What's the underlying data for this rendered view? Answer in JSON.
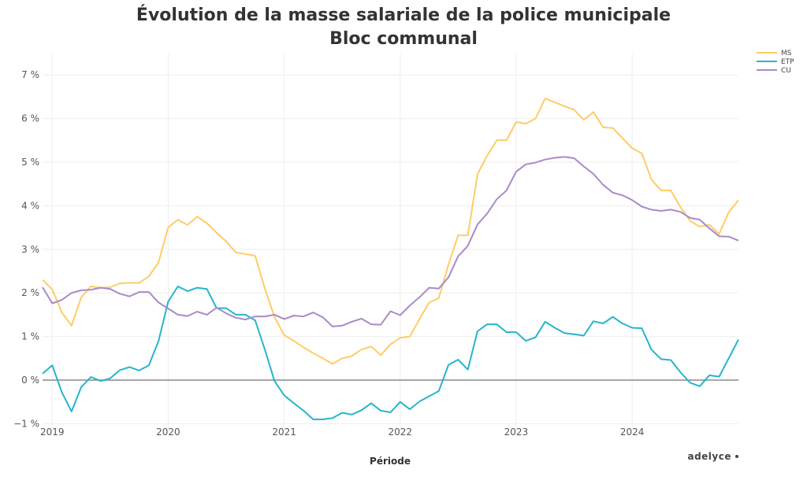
{
  "chart_data": {
    "type": "line",
    "title": "Évolution de la masse salariale de la police municipale",
    "subtitle": "Bloc communal",
    "xlabel": "Période",
    "ylabel": "",
    "ylim": [
      -1,
      7.6
    ],
    "y_ticks": [
      -1,
      0,
      1,
      2,
      3,
      4,
      5,
      6,
      7
    ],
    "y_tick_labels": [
      "−1 %",
      "0 %",
      "1 %",
      "2 %",
      "3 %",
      "4 %",
      "5 %",
      "6 %",
      "7 %"
    ],
    "x_tick_labels": [
      "2019",
      "2020",
      "2021",
      "2022",
      "2023",
      "2024"
    ],
    "x_start": "2018-12",
    "x_end": "2024-12",
    "x_frequency": "monthly",
    "grid": true,
    "zero_line": true,
    "legend_position": "top-right",
    "branding": "adelyce",
    "series": [
      {
        "name": "MS",
        "color": "#FFCC66",
        "values": [
          2.3,
          2.08,
          1.55,
          1.25,
          1.9,
          2.15,
          2.12,
          2.13,
          2.22,
          2.23,
          2.23,
          2.38,
          2.7,
          3.5,
          3.68,
          3.56,
          3.75,
          3.6,
          3.38,
          3.18,
          2.93,
          2.89,
          2.85,
          2.1,
          1.45,
          1.03,
          0.9,
          0.75,
          0.62,
          0.5,
          0.37,
          0.5,
          0.55,
          0.7,
          0.77,
          0.57,
          0.82,
          0.97,
          1.0,
          1.4,
          1.78,
          1.88,
          2.65,
          3.32,
          3.32,
          4.72,
          5.15,
          5.5,
          5.5,
          5.92,
          5.88,
          6.0,
          6.46,
          6.37,
          6.28,
          6.2,
          5.97,
          6.15,
          5.8,
          5.78,
          5.55,
          5.32,
          5.2,
          4.6,
          4.35,
          4.35,
          3.97,
          3.65,
          3.52,
          3.56,
          3.35,
          3.85,
          4.13
        ]
      },
      {
        "name": "ETP",
        "color": "#26B5CC",
        "values": [
          0.15,
          0.34,
          -0.28,
          -0.72,
          -0.16,
          0.07,
          -0.02,
          0.04,
          0.23,
          0.3,
          0.22,
          0.34,
          0.9,
          1.8,
          2.15,
          2.04,
          2.12,
          2.09,
          1.65,
          1.65,
          1.5,
          1.5,
          1.37,
          0.7,
          -0.02,
          -0.35,
          -0.53,
          -0.7,
          -0.9,
          -0.9,
          -0.87,
          -0.75,
          -0.79,
          -0.69,
          -0.53,
          -0.7,
          -0.74,
          -0.5,
          -0.67,
          -0.49,
          -0.37,
          -0.25,
          0.35,
          0.47,
          0.24,
          1.12,
          1.28,
          1.28,
          1.1,
          1.1,
          0.9,
          0.98,
          1.34,
          1.2,
          1.08,
          1.05,
          1.02,
          1.35,
          1.3,
          1.45,
          1.3,
          1.2,
          1.19,
          0.7,
          0.48,
          0.46,
          0.18,
          -0.06,
          -0.14,
          0.11,
          0.08,
          0.5,
          0.93
        ]
      },
      {
        "name": "CU",
        "color": "#A98BC8",
        "values": [
          2.13,
          1.76,
          1.84,
          2.0,
          2.06,
          2.07,
          2.12,
          2.09,
          1.98,
          1.92,
          2.02,
          2.02,
          1.78,
          1.64,
          1.5,
          1.47,
          1.57,
          1.5,
          1.66,
          1.53,
          1.43,
          1.39,
          1.46,
          1.46,
          1.5,
          1.4,
          1.48,
          1.46,
          1.55,
          1.44,
          1.23,
          1.25,
          1.34,
          1.41,
          1.28,
          1.27,
          1.58,
          1.49,
          1.71,
          1.9,
          2.12,
          2.1,
          2.36,
          2.84,
          3.08,
          3.57,
          3.82,
          4.15,
          4.35,
          4.78,
          4.95,
          4.99,
          5.06,
          5.1,
          5.12,
          5.09,
          4.9,
          4.73,
          4.48,
          4.3,
          4.24,
          4.13,
          3.98,
          3.91,
          3.88,
          3.91,
          3.86,
          3.72,
          3.68,
          3.48,
          3.3,
          3.29,
          3.2
        ]
      }
    ]
  }
}
